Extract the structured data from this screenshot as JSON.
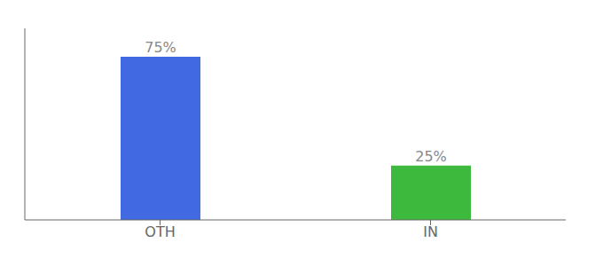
{
  "chart_data": {
    "type": "bar",
    "categories": [
      "OTH",
      "IN"
    ],
    "values": [
      75,
      25
    ],
    "value_labels": [
      "75%",
      "25%"
    ],
    "colors": [
      "#4169e1",
      "#3dba3d"
    ],
    "ylim": [
      0,
      88
    ],
    "data_labels": true,
    "tick_labels": "x",
    "grid": false
  }
}
